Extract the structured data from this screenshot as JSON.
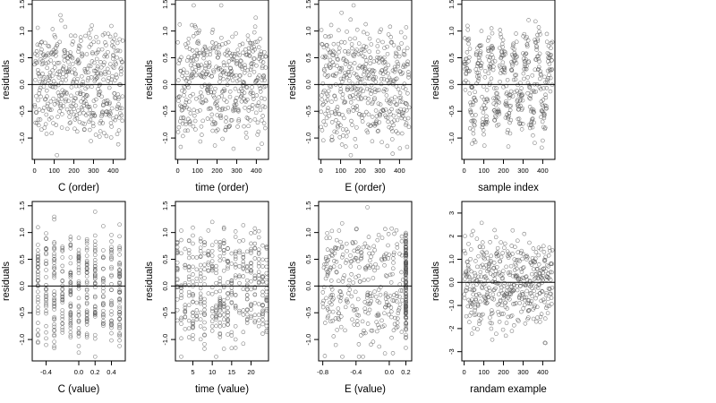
{
  "chart_data": [
    {
      "type": "scatter",
      "xlabel": "C (order)",
      "ylabel": "residuals",
      "xticks": [
        0,
        100,
        200,
        300,
        400
      ],
      "xlim": [
        -12,
        462
      ],
      "yticks": [
        -1.0,
        -0.5,
        0.0,
        0.5,
        1.0,
        1.5
      ],
      "ylim": [
        -1.4,
        1.58
      ],
      "generator": "noise",
      "n": 450,
      "refline_y": 0
    },
    {
      "type": "scatter",
      "xlabel": "time (order)",
      "ylabel": "residuals",
      "xticks": [
        0,
        100,
        200,
        300,
        400
      ],
      "xlim": [
        -12,
        462
      ],
      "yticks": [
        -1.0,
        -0.5,
        0.0,
        0.5,
        1.0,
        1.5
      ],
      "ylim": [
        -1.4,
        1.58
      ],
      "generator": "noise",
      "n": 450,
      "refline_y": 0
    },
    {
      "type": "scatter",
      "xlabel": "E (order)",
      "ylabel": "residuals",
      "xticks": [
        0,
        100,
        200,
        300,
        400
      ],
      "xlim": [
        -12,
        462
      ],
      "yticks": [
        -1.0,
        -0.5,
        0.0,
        0.5,
        1.0,
        1.5
      ],
      "ylim": [
        -1.4,
        1.58
      ],
      "generator": "noise",
      "n": 450,
      "refline_y": 0
    },
    {
      "type": "scatter",
      "xlabel": "sample index",
      "ylabel": "residuals",
      "xticks": [
        0,
        100,
        200,
        300,
        400
      ],
      "xlim": [
        -12,
        462
      ],
      "yticks": [
        -1.0,
        -0.5,
        0.0,
        0.5,
        1.0,
        1.5
      ],
      "ylim": [
        -1.4,
        1.58
      ],
      "generator": "clusters",
      "n": 450,
      "refline_y": 0
    },
    {
      "type": "scatter",
      "xlabel": "C (value)",
      "ylabel": "residuals",
      "xticks": [
        -0.4,
        0.0,
        0.2,
        0.4
      ],
      "xtick_labels": [
        "-0.4",
        "0.0",
        "0.2",
        "0.4"
      ],
      "xlim": [
        -0.57,
        0.57
      ],
      "yticks": [
        -1.0,
        -0.5,
        0.0,
        0.5,
        1.0,
        1.5
      ],
      "ylim": [
        -1.4,
        1.58
      ],
      "generator": "discrete",
      "x_levels": [
        -0.5,
        -0.4,
        -0.3,
        -0.2,
        -0.1,
        0.0,
        0.1,
        0.2,
        0.3,
        0.4,
        0.5
      ],
      "n": 420,
      "refline_y": 0
    },
    {
      "type": "scatter",
      "xlabel": "time (value)",
      "ylabel": "residuals",
      "xticks": [
        5,
        10,
        15,
        20
      ],
      "xtick_labels": [
        "5",
        "10",
        "15",
        "20"
      ],
      "xlim": [
        0.5,
        24.5
      ],
      "yticks": [
        -1.0,
        -0.5,
        0.0,
        0.5,
        1.0,
        1.5
      ],
      "ylim": [
        -1.4,
        1.58
      ],
      "generator": "discrete",
      "x_levels": [
        1,
        2,
        3,
        4,
        5,
        6,
        7,
        8,
        9,
        10,
        11,
        12,
        13,
        14,
        15,
        16,
        17,
        18,
        19,
        20,
        21,
        22,
        23,
        24
      ],
      "n": 430,
      "refline_y": 0
    },
    {
      "type": "scatter",
      "xlabel": "E (value)",
      "ylabel": "residuals",
      "xticks": [
        -0.8,
        -0.4,
        0.0,
        0.2
      ],
      "xtick_labels": [
        "-0.8",
        "-0.4",
        "0.0",
        "0.2"
      ],
      "xlim": [
        -0.85,
        0.27
      ],
      "yticks": [
        -1.0,
        -0.5,
        0.0,
        0.5,
        1.0,
        1.5
      ],
      "ylim": [
        -1.4,
        1.58
      ],
      "generator": "spread_pile",
      "pile_x": 0.2,
      "n": 300,
      "refline_y": 0
    },
    {
      "type": "scatter",
      "xlabel": "randam example",
      "ylabel": "residuals",
      "xticks": [
        0,
        100,
        200,
        300,
        400
      ],
      "xlim": [
        -12,
        462
      ],
      "yticks": [
        -3,
        -2,
        -1,
        0,
        1,
        2,
        3
      ],
      "ylim": [
        -3.4,
        3.5
      ],
      "generator": "gaussian",
      "n": 450,
      "refline_y": 0
    }
  ],
  "style": {
    "point_color": "#555555",
    "line_color": "#000000"
  }
}
